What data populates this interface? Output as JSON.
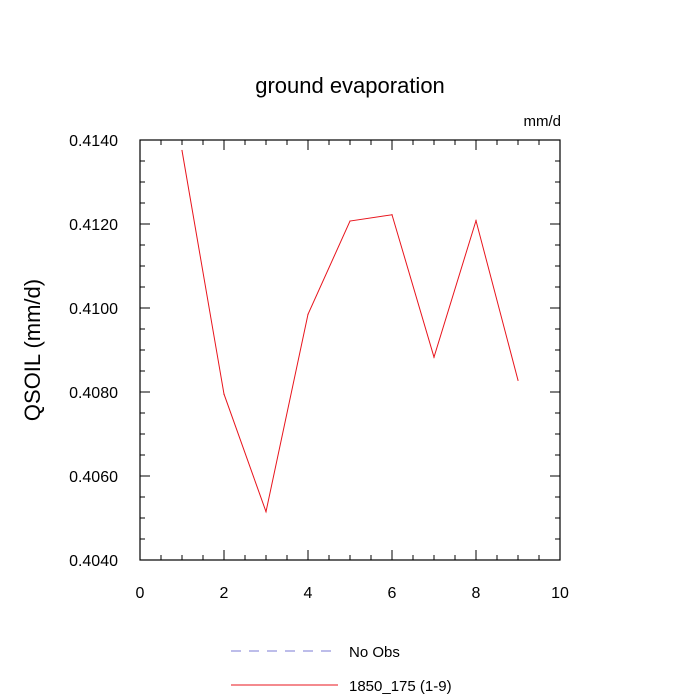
{
  "chart_data": {
    "type": "line",
    "title": "ground evaporation",
    "units_label": "mm/d",
    "ylabel": "QSOIL  (mm/d)",
    "xlabel": "",
    "xlim": [
      0,
      10
    ],
    "ylim": [
      0.404,
      0.414
    ],
    "x_ticks": [
      "0",
      "2",
      "4",
      "6",
      "8",
      "10"
    ],
    "y_ticks": [
      "0.4040",
      "0.4060",
      "0.4080",
      "0.4100",
      "0.4120",
      "0.4140"
    ],
    "series": [
      {
        "name": "1850_175 (1-9)",
        "color": "#e8141c",
        "style": "solid",
        "x": [
          1,
          2,
          3,
          4,
          5,
          6,
          7,
          8,
          9
        ],
        "y": [
          0.41375,
          0.40795,
          0.40515,
          0.40985,
          0.41207,
          0.41222,
          0.40883,
          0.41208,
          0.40828
        ]
      }
    ],
    "legend": [
      {
        "label": "No Obs",
        "color": "#7b7bd6",
        "style": "dashed"
      },
      {
        "label": "1850_175 (1-9)",
        "color": "#e8141c",
        "style": "solid"
      }
    ],
    "legend_position": "bottom-center",
    "grid": false
  }
}
